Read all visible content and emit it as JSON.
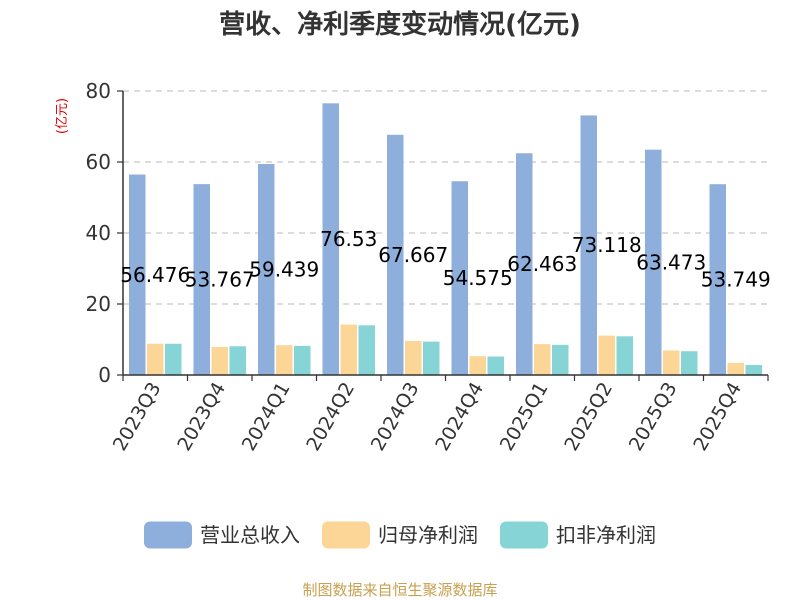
{
  "chart_data": {
    "type": "bar",
    "title": "营收、净利季度变动情况(亿元)",
    "ylabel": "(亿元)",
    "ylim": [
      0,
      80
    ],
    "yticks": [
      0,
      20,
      40,
      60,
      80
    ],
    "grid": true,
    "legend_position": "bottom",
    "categories": [
      "2023Q3",
      "2023Q4",
      "2024Q1",
      "2024Q2",
      "2024Q3",
      "2024Q4",
      "2025Q1",
      "2025Q2",
      "2025Q3",
      "2025Q4"
    ],
    "series": [
      {
        "name": "营业总收入",
        "color": "#8eaedb",
        "values": [
          56.476,
          53.767,
          59.439,
          76.53,
          67.667,
          54.575,
          62.463,
          73.118,
          63.473,
          53.749
        ]
      },
      {
        "name": "归母净利润",
        "color": "#fcd697",
        "values": [
          8.8,
          7.9,
          8.4,
          14.2,
          9.6,
          5.3,
          8.7,
          11.1,
          6.9,
          3.4
        ]
      },
      {
        "name": "扣非净利润",
        "color": "#86d4d6",
        "values": [
          8.8,
          8.1,
          8.2,
          14.0,
          9.4,
          5.2,
          8.5,
          10.9,
          6.7,
          2.8
        ]
      }
    ],
    "data_labels": [
      "56.476",
      "53.767",
      "59.439",
      "76.53",
      "67.667",
      "54.575",
      "62.463",
      "73.118",
      "63.473",
      "53.749"
    ]
  },
  "source": "制图数据来自恒生聚源数据库"
}
